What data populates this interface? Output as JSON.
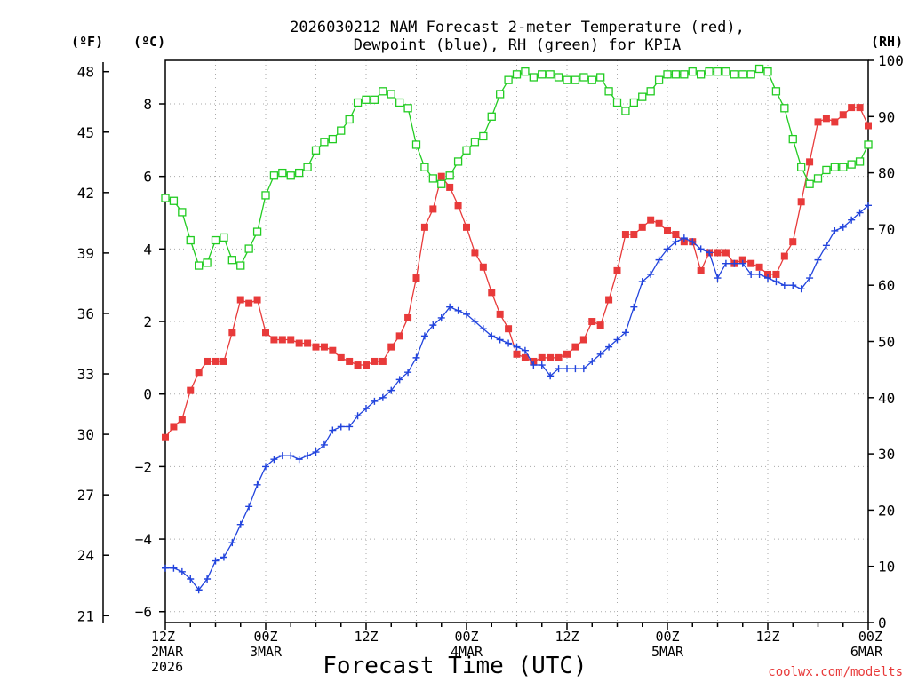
{
  "title_line1": "2026030212 NAM Forecast 2-meter Temperature (red),",
  "title_line2": "Dewpoint (blue), RH (green) for KPIA",
  "credit": "coolwx.com/modelts",
  "credit_color": "#e83a3a",
  "colors": {
    "temperature": "#e83a3a",
    "dewpoint": "#2244dd",
    "rh": "#22cc22",
    "grid": "#aaaaaa"
  },
  "chart_data": {
    "type": "line",
    "xlabel": "Forecast Time (UTC)",
    "x_hours": [
      0,
      1,
      2,
      3,
      4,
      5,
      6,
      7,
      8,
      9,
      10,
      11,
      12,
      13,
      14,
      15,
      16,
      17,
      18,
      19,
      20,
      21,
      22,
      23,
      24,
      25,
      26,
      27,
      28,
      29,
      30,
      31,
      32,
      33,
      34,
      35,
      36,
      37,
      38,
      39,
      40,
      41,
      42,
      43,
      44,
      45,
      46,
      47,
      48,
      49,
      50,
      51,
      52,
      53,
      54,
      55,
      56,
      57,
      58,
      59,
      60,
      61,
      62,
      63,
      64,
      65,
      66,
      67,
      68,
      69,
      70,
      71,
      72,
      73,
      74,
      75,
      76,
      77,
      78,
      79,
      80,
      81,
      82,
      83,
      84
    ],
    "x_ticks": [
      {
        "hour": 0,
        "lines": [
          "12Z",
          "2MAR",
          "2026"
        ]
      },
      {
        "hour": 12,
        "lines": [
          "00Z",
          "3MAR"
        ]
      },
      {
        "hour": 24,
        "lines": [
          "12Z"
        ]
      },
      {
        "hour": 36,
        "lines": [
          "00Z",
          "4MAR"
        ]
      },
      {
        "hour": 48,
        "lines": [
          "12Z"
        ]
      },
      {
        "hour": 60,
        "lines": [
          "00Z",
          "5MAR"
        ]
      },
      {
        "hour": 72,
        "lines": [
          "12Z"
        ]
      },
      {
        "hour": 84,
        "lines": [
          "00Z",
          "6MAR"
        ]
      }
    ],
    "xlim": [
      0,
      84
    ],
    "y_celsius": {
      "label": "(ºC)",
      "ylim": [
        -6.3,
        9.2
      ],
      "ticks": [
        -6,
        -4,
        -2,
        0,
        2,
        4,
        6,
        8
      ]
    },
    "y_fahrenheit": {
      "label": "(ºF)",
      "ticks": [
        21,
        24,
        27,
        30,
        33,
        36,
        39,
        42,
        45,
        48
      ]
    },
    "y_rh": {
      "label": "(RH)",
      "ylim": [
        0,
        100
      ],
      "ticks": [
        0,
        10,
        20,
        30,
        40,
        50,
        60,
        70,
        80,
        90,
        100
      ]
    },
    "grid": true,
    "series": [
      {
        "name": "Temperature",
        "axis": "celsius",
        "marker": "filled-square",
        "values": [
          -1.2,
          -0.9,
          -0.7,
          0.1,
          0.6,
          0.9,
          0.9,
          0.9,
          1.7,
          2.6,
          2.5,
          2.6,
          1.7,
          1.5,
          1.5,
          1.5,
          1.4,
          1.4,
          1.3,
          1.3,
          1.2,
          1.0,
          0.9,
          0.8,
          0.8,
          0.9,
          0.9,
          1.3,
          1.6,
          2.1,
          3.2,
          4.6,
          5.1,
          6.0,
          5.7,
          5.2,
          4.6,
          3.9,
          3.5,
          2.8,
          2.2,
          1.8,
          1.1,
          1.0,
          0.9,
          1.0,
          1.0,
          1.0,
          1.1,
          1.3,
          1.5,
          2.0,
          1.9,
          2.6,
          3.4,
          4.4,
          4.4,
          4.6,
          4.8,
          4.7,
          4.5,
          4.4,
          4.2,
          4.2,
          3.4,
          3.9,
          3.9,
          3.9,
          3.6,
          3.7,
          3.6,
          3.5,
          3.3,
          3.3,
          3.8,
          4.2,
          5.3,
          6.4,
          7.5,
          7.6,
          7.5,
          7.7,
          7.9,
          7.9,
          7.4
        ]
      },
      {
        "name": "Dewpoint",
        "axis": "celsius",
        "marker": "plus",
        "values": [
          -4.8,
          -4.8,
          -4.9,
          -5.1,
          -5.4,
          -5.1,
          -4.6,
          -4.5,
          -4.1,
          -3.6,
          -3.1,
          -2.5,
          -2.0,
          -1.8,
          -1.7,
          -1.7,
          -1.8,
          -1.7,
          -1.6,
          -1.4,
          -1.0,
          -0.9,
          -0.9,
          -0.6,
          -0.4,
          -0.2,
          -0.1,
          0.1,
          0.4,
          0.6,
          1.0,
          1.6,
          1.9,
          2.1,
          2.4,
          2.3,
          2.2,
          2.0,
          1.8,
          1.6,
          1.5,
          1.4,
          1.3,
          1.2,
          0.8,
          0.8,
          0.5,
          0.7,
          0.7,
          0.7,
          0.7,
          0.9,
          1.1,
          1.3,
          1.5,
          1.7,
          2.4,
          3.1,
          3.3,
          3.7,
          4.0,
          4.2,
          4.3,
          4.2,
          4.0,
          3.9,
          3.2,
          3.6,
          3.6,
          3.6,
          3.3,
          3.3,
          3.2,
          3.1,
          3.0,
          3.0,
          2.9,
          3.2,
          3.7,
          4.1,
          4.5,
          4.6,
          4.8,
          5.0,
          5.2
        ]
      },
      {
        "name": "RH",
        "axis": "rh",
        "marker": "open-square",
        "values": [
          75.5,
          75,
          73,
          68,
          63.5,
          64,
          68,
          68.5,
          64.5,
          63.5,
          66.5,
          69.5,
          76,
          79.5,
          80,
          79.5,
          80,
          81,
          84,
          85.5,
          86,
          87.5,
          89.5,
          92.5,
          93,
          93,
          94.5,
          94,
          92.5,
          91.5,
          85,
          81,
          79,
          78,
          79.5,
          82,
          84,
          85.5,
          86.5,
          90,
          94,
          96.5,
          97.5,
          98,
          97,
          97.5,
          97.5,
          97,
          96.5,
          96.5,
          97,
          96.5,
          97,
          94.5,
          92.5,
          91,
          92.5,
          93.5,
          94.5,
          96.5,
          97.5,
          97.5,
          97.5,
          98,
          97.5,
          98,
          98,
          98,
          97.5,
          97.5,
          97.5,
          98.5,
          98,
          94.5,
          91.5,
          86,
          81,
          78,
          79,
          80.5,
          81,
          81,
          81.5,
          82,
          85
        ]
      }
    ]
  }
}
